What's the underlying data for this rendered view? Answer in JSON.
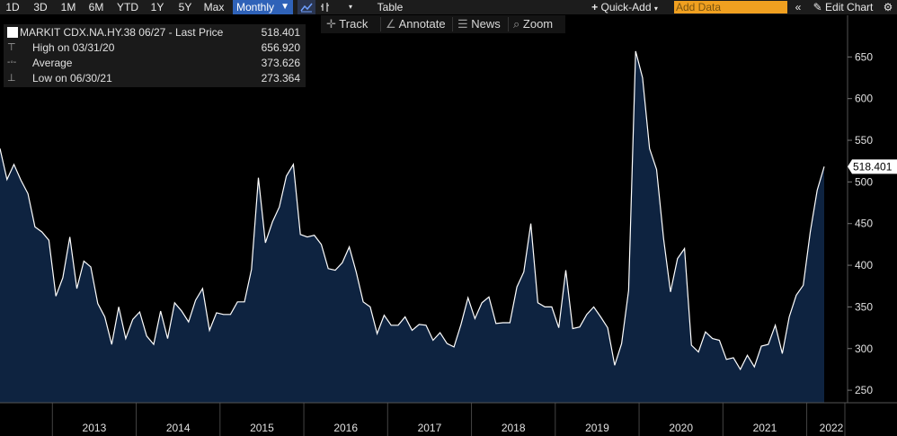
{
  "toolbar": {
    "ranges": [
      "1D",
      "3D",
      "1M",
      "6M",
      "YTD",
      "1Y",
      "5Y",
      "Max"
    ],
    "frequency": "Monthly",
    "table_label": "Table",
    "quick_add_label": "Quick-Add",
    "add_data_placeholder": "Add Data",
    "edit_chart_label": "Edit Chart"
  },
  "toolbar2": {
    "track_label": "Track",
    "annotate_label": "Annotate",
    "news_label": "News",
    "zoom_label": "Zoom"
  },
  "legend": {
    "title": "MARKIT CDX.NA.HY.38 06/27 - Last Price",
    "title_value": "518.401",
    "high_label": "High on 03/31/20",
    "high_value": "656.920",
    "avg_label": "Average",
    "avg_value": "373.626",
    "low_label": "Low on 06/30/21",
    "low_value": "273.364"
  },
  "colors": {
    "background": "#000000",
    "area_fill": "#0e2340",
    "line": "#ffffff",
    "selected": "#2f62b8",
    "add_data": "#f0a020"
  },
  "chart_data": {
    "type": "area",
    "series": [
      {
        "values": [
          540,
          503,
          521,
          502,
          486,
          446,
          440,
          430,
          363,
          385,
          434,
          372,
          405,
          398,
          354,
          338,
          305,
          350,
          312,
          335,
          344,
          315,
          305,
          345,
          312,
          355,
          345,
          332,
          358,
          372,
          322,
          343,
          341,
          341,
          356,
          356,
          395,
          505,
          427,
          452,
          470,
          507,
          521,
          437,
          434,
          436,
          425,
          396,
          394,
          403,
          422,
          392,
          356,
          350,
          318,
          340,
          328,
          328,
          338,
          322,
          329,
          328,
          310,
          319,
          306,
          302,
          329,
          361,
          336,
          355,
          362,
          330,
          331,
          331,
          374,
          392,
          450,
          355,
          350,
          350,
          325,
          394,
          324,
          326,
          341,
          350,
          338,
          325,
          280,
          306,
          370,
          656.92,
          625,
          540,
          515,
          432,
          368,
          408,
          420,
          304,
          296,
          320,
          312,
          310,
          287,
          289,
          275,
          292,
          278,
          303,
          305,
          328,
          294,
          338,
          364,
          376,
          440,
          490,
          518.401
        ]
      }
    ],
    "start_month": "2012-05",
    "frequency": "monthly",
    "y_ticks": [
      250,
      300,
      350,
      400,
      450,
      500,
      550,
      600,
      650
    ],
    "ylim": [
      235,
      700
    ],
    "x_tick_labels": [
      "2013",
      "2014",
      "2015",
      "2016",
      "2017",
      "2018",
      "2019",
      "2020",
      "2021",
      "2022"
    ],
    "last_value_label": "518.401",
    "grid": false
  }
}
